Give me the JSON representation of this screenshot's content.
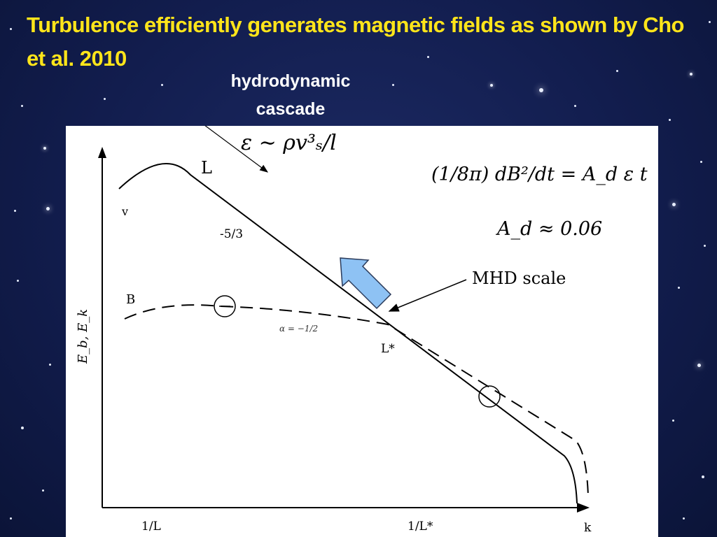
{
  "slide": {
    "title": "Turbulence efficiently generates magnetic fields as shown by Cho et al. 2010",
    "cascade_label": [
      "hydrodynamic",
      "cascade"
    ]
  },
  "diagram": {
    "epsilon_formula": "ε ∼ ρv³ₛ/l",
    "dB_formula": "(1/8π) dB²/dt = A_d ε t",
    "coefficient": "A_d ≈ 0.06",
    "mhd_scale_label": "MHD scale",
    "curve_v_label": "v",
    "curve_L_label": "L",
    "slope_label": "-5/3",
    "curve_B_label": "B",
    "alpha_label": "α = −1/2",
    "lstar_label": "L*",
    "y_axis_label": "E_b, E_k",
    "x_tick_1L": "1/L",
    "x_tick_1Lstar": "1/L*",
    "x_axis_end_label": "k",
    "arrow_color": "#8ec2f4"
  }
}
